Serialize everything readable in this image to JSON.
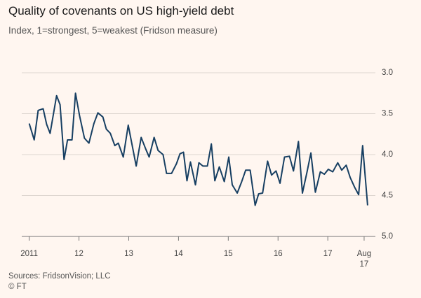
{
  "chart_data": {
    "type": "line",
    "title": "Quality of covenants on US high-yield debt",
    "subtitle": "Index, 1=strongest, 5=weakest (Fridson measure)",
    "source": "Sources: FridsonVision; LLC",
    "credit": "© FT",
    "x": [
      2011.0,
      2011.1,
      2011.18,
      2011.28,
      2011.35,
      2011.42,
      2011.55,
      2011.62,
      2011.7,
      2011.77,
      2011.86,
      2011.93,
      2012.01,
      2012.11,
      2012.2,
      2012.3,
      2012.38,
      2012.48,
      2012.55,
      2012.63,
      2012.72,
      2012.79,
      2012.89,
      2012.99,
      2013.07,
      2013.15,
      2013.25,
      2013.34,
      2013.41,
      2013.51,
      2013.59,
      2013.69,
      2013.76,
      2013.86,
      2013.96,
      2014.03,
      2014.1,
      2014.17,
      2014.24,
      2014.34,
      2014.41,
      2014.49,
      2014.58,
      2014.66,
      2014.73,
      2014.82,
      2014.92,
      2015.01,
      2015.08,
      2015.18,
      2015.27,
      2015.35,
      2015.44,
      2015.54,
      2015.61,
      2015.69,
      2015.79,
      2015.87,
      2015.96,
      2016.04,
      2016.13,
      2016.23,
      2016.31,
      2016.41,
      2016.49,
      2016.58,
      2016.66,
      2016.75,
      2016.85,
      2016.93,
      2017.01,
      2017.1,
      2017.2,
      2017.28,
      2017.37,
      2017.45,
      2017.54,
      2017.62,
      2017.7,
      2017.8
    ],
    "series": [
      {
        "color": "#173f62",
        "values": [
          3.62,
          3.82,
          3.46,
          3.44,
          3.63,
          3.74,
          3.28,
          3.39,
          4.06,
          3.82,
          3.82,
          3.25,
          3.52,
          3.8,
          3.86,
          3.62,
          3.49,
          3.54,
          3.69,
          3.74,
          3.89,
          3.86,
          4.03,
          3.64,
          3.89,
          4.14,
          3.79,
          3.93,
          4.03,
          3.79,
          3.95,
          4.0,
          4.23,
          4.23,
          4.11,
          3.99,
          3.97,
          4.32,
          4.09,
          4.37,
          4.1,
          4.14,
          4.14,
          3.87,
          4.32,
          4.15,
          4.33,
          4.03,
          4.37,
          4.47,
          4.33,
          4.19,
          4.19,
          4.62,
          4.48,
          4.47,
          4.08,
          4.25,
          4.2,
          4.35,
          4.03,
          4.02,
          4.2,
          3.84,
          4.47,
          4.22,
          3.98,
          4.46,
          4.21,
          4.24,
          4.18,
          4.21,
          4.1,
          4.19,
          4.13,
          4.28,
          4.4,
          4.49,
          3.89,
          4.62
        ]
      }
    ],
    "xlim": [
      2010.85,
      2017.9
    ],
    "xticks": [
      {
        "value": 2011,
        "label": "2011"
      },
      {
        "value": 2012,
        "label": "12"
      },
      {
        "value": 2013,
        "label": "13"
      },
      {
        "value": 2014,
        "label": "14"
      },
      {
        "value": 2015,
        "label": "15"
      },
      {
        "value": 2016,
        "label": "16"
      },
      {
        "value": 2017,
        "label": "17"
      },
      {
        "value": 2017.73,
        "label": "Aug 17"
      }
    ],
    "ylim": [
      5,
      3
    ],
    "yticks": [
      {
        "value": 3,
        "label": "3.0"
      },
      3.5,
      {
        "value": 4,
        "label": "4.0"
      },
      4.5,
      {
        "value": 5,
        "label": "5.0"
      }
    ],
    "grid": true
  }
}
